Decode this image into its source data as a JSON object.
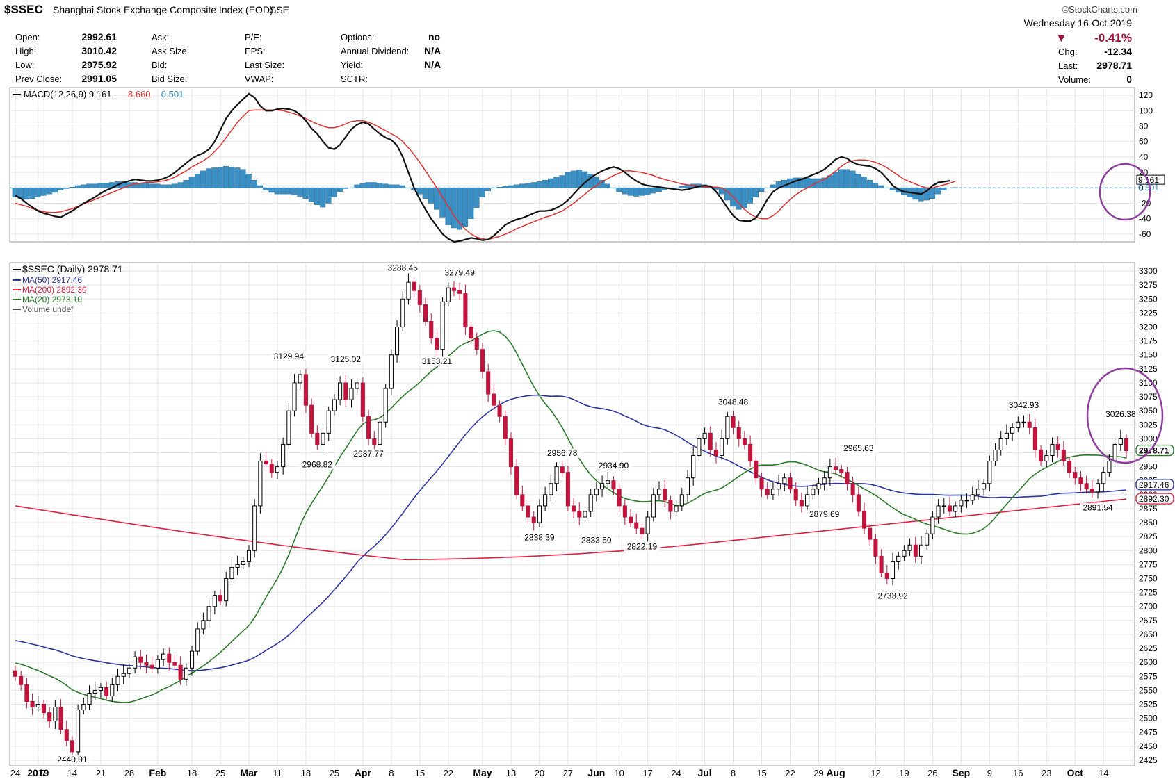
{
  "header": {
    "symbol": "$SSEC",
    "title": "Shanghai Stock Exchange Composite Index (EOD)",
    "exchange": "SSE",
    "watermark": "©StockCharts.com",
    "date": "Wednesday  16-Oct-2019",
    "pct_change": "-0.41%",
    "chg_label": "Chg:",
    "chg_value": "-12.34",
    "last_label": "Last:",
    "last_value": "2978.71",
    "volume_label": "Volume:",
    "volume_value": "0",
    "colors": {
      "down": "#c0143c",
      "up_candle_fill": "#ffffff",
      "purple": "#8e3ca0"
    }
  },
  "quote": {
    "open_label": "Open:",
    "open": "2992.61",
    "high_label": "High:",
    "high": "3010.42",
    "low_label": "Low:",
    "low": "2975.92",
    "prev_label": "Prev Close:",
    "prev": "2991.05",
    "ask_label": "Ask:",
    "ask_size_label": "Ask Size:",
    "bid_label": "Bid:",
    "bid_size_label": "Bid Size:",
    "pe_label": "P/E:",
    "eps_label": "EPS:",
    "last_size_label": "Last Size:",
    "vwap_label": "VWAP:",
    "options_label": "Options:",
    "options": "no",
    "div_label": "Annual Dividend:",
    "div": "N/A",
    "yield_label": "Yield:",
    "yield": "N/A",
    "sctr_label": "SCTR:"
  },
  "chart_data": [
    {
      "type": "line",
      "title": "MACD(12,26,9)",
      "legend": [
        {
          "text": "MACD(12,26,9) 9.161,",
          "color": "#000000"
        },
        {
          "text": "8.660,",
          "color": "#e23030"
        },
        {
          "text": "0.501",
          "color": "#3a8fc4"
        }
      ],
      "ylim": [
        -70,
        130
      ],
      "yticks": [
        120,
        100,
        80,
        60,
        40,
        20,
        0,
        -20,
        -40,
        -60
      ],
      "ytick_labels": [
        "120",
        "100",
        "80",
        "60",
        "40",
        "20",
        "0",
        "-20",
        "-40",
        "-60"
      ],
      "end_labels": {
        "macd": "9.161",
        "histogram": "0.501"
      },
      "histogram": [
        -12,
        -14,
        -15,
        -14,
        -12,
        -10,
        -8,
        -6,
        -3,
        -1,
        1,
        3,
        4,
        5,
        5,
        6,
        6,
        7,
        8,
        8,
        7,
        7,
        6,
        6,
        5,
        5,
        4,
        4,
        5,
        7,
        10,
        14,
        18,
        22,
        25,
        26,
        27,
        28,
        27,
        26,
        24,
        18,
        10,
        3,
        -3,
        -6,
        -8,
        -8,
        -8,
        -9,
        -11,
        -14,
        -18,
        -22,
        -25,
        -20,
        -12,
        -5,
        -1,
        0,
        4,
        6,
        7,
        7,
        6,
        5,
        4,
        4,
        3,
        0,
        -3,
        -8,
        -14,
        -20,
        -28,
        -38,
        -48,
        -52,
        -54,
        -50,
        -40,
        -26,
        -12,
        -4,
        0,
        1,
        2,
        3,
        4,
        5,
        6,
        7,
        8,
        10,
        12,
        14,
        16,
        20,
        22,
        23,
        21,
        18,
        14,
        10,
        5,
        0,
        -5,
        -8,
        -10,
        -11,
        -10,
        -9,
        -7,
        -5,
        -3,
        -1,
        0,
        2,
        4,
        5,
        5,
        4,
        2,
        -2,
        -8,
        -16,
        -24,
        -28,
        -26,
        -20,
        -12,
        -5,
        0,
        4,
        8,
        10,
        12,
        13,
        13,
        13,
        12,
        12,
        13,
        16,
        20,
        24,
        24,
        22,
        18,
        14,
        10,
        6,
        3,
        0,
        -3,
        -6,
        -9,
        -12,
        -15,
        -17,
        -16,
        -14,
        -8,
        -3,
        0,
        0.5
      ],
      "macd": [
        -10,
        -14,
        -20,
        -25,
        -30,
        -33,
        -35,
        -37,
        -38,
        -34,
        -30,
        -25,
        -20,
        -16,
        -12,
        -7,
        -3,
        0,
        4,
        7,
        9,
        11,
        10,
        9,
        9,
        10,
        12,
        15,
        20,
        26,
        32,
        38,
        42,
        45,
        50,
        60,
        75,
        90,
        100,
        108,
        115,
        122,
        117,
        106,
        100,
        100,
        102,
        103,
        102,
        100,
        95,
        87,
        77,
        70,
        60,
        52,
        50,
        56,
        66,
        76,
        82,
        85,
        83,
        76,
        70,
        65,
        62,
        55,
        40,
        20,
        0,
        -15,
        -28,
        -40,
        -50,
        -60,
        -66,
        -70,
        -69,
        -67,
        -65,
        -66,
        -68,
        -67,
        -62,
        -55,
        -48,
        -44,
        -41,
        -39,
        -36,
        -33,
        -30,
        -30,
        -29,
        -26,
        -22,
        -16,
        -8,
        0,
        7,
        13,
        18,
        22,
        25,
        27,
        25,
        20,
        14,
        9,
        5,
        3,
        2,
        1,
        0,
        -1,
        -2,
        -3,
        -2,
        0,
        2,
        3,
        2,
        -5,
        -15,
        -26,
        -36,
        -42,
        -43,
        -43,
        -39,
        -28,
        -15,
        -5,
        0,
        3,
        6,
        9,
        11,
        14,
        17,
        20,
        24,
        30,
        37,
        40,
        38,
        33,
        30,
        29,
        28,
        25,
        20,
        12,
        3,
        -2,
        -5,
        -6,
        -7,
        -8,
        -4,
        3,
        7,
        8,
        9.161
      ],
      "signal": [
        -20,
        -22,
        -24,
        -27,
        -29,
        -31,
        -32,
        -32,
        -31,
        -29,
        -27,
        -24,
        -21,
        -18,
        -15,
        -12,
        -9,
        -6,
        -3,
        0,
        3,
        5,
        6,
        7,
        7,
        8,
        9,
        11,
        14,
        18,
        22,
        27,
        31,
        35,
        40,
        47,
        55,
        65,
        75,
        85,
        93,
        100,
        101,
        101,
        101,
        101,
        101,
        100,
        98,
        96,
        93,
        90,
        86,
        83,
        80,
        78,
        78,
        80,
        83,
        86,
        87,
        87,
        85,
        82,
        78,
        74,
        70,
        66,
        60,
        52,
        43,
        33,
        22,
        11,
        0,
        -12,
        -24,
        -36,
        -46,
        -54,
        -60,
        -64,
        -66,
        -67,
        -65,
        -63,
        -60,
        -57,
        -53,
        -50,
        -47,
        -44,
        -41,
        -38,
        -36,
        -33,
        -30,
        -25,
        -20,
        -14,
        -8,
        -2,
        3,
        8,
        12,
        16,
        19,
        22,
        22,
        21,
        20,
        18,
        16,
        13,
        11,
        9,
        7,
        5,
        4,
        3,
        2,
        1,
        1,
        1,
        0,
        -5,
        -12,
        -20,
        -28,
        -34,
        -38,
        -40,
        -40,
        -36,
        -30,
        -22,
        -15,
        -9,
        -4,
        0,
        4,
        8,
        11,
        16,
        22,
        28,
        33,
        35,
        36,
        36,
        35,
        33,
        30,
        26,
        21,
        16,
        11,
        8,
        5,
        2,
        0,
        0,
        2,
        4,
        6,
        8.66
      ]
    },
    {
      "type": "candlestick",
      "title": "$SSEC (Daily) 2978.71",
      "ylim": [
        2415,
        3315
      ],
      "yticks": [
        3300,
        3275,
        3250,
        3225,
        3200,
        3175,
        3150,
        3125,
        3100,
        3075,
        3050,
        3025,
        3000,
        2975,
        2950,
        2925,
        2900,
        2875,
        2850,
        2825,
        2800,
        2775,
        2750,
        2725,
        2700,
        2675,
        2650,
        2625,
        2600,
        2575,
        2550,
        2525,
        2500,
        2475,
        2450,
        2425
      ],
      "ytick_labels": [
        "3300",
        "3275",
        "3250",
        "3225",
        "3200",
        "3175",
        "3150",
        "3125",
        "3100",
        "3075",
        "3050",
        "3025",
        "3000",
        "2975",
        "2950",
        "2925",
        "2900",
        "2875",
        "2850",
        "2825",
        "2800",
        "2775",
        "2750",
        "2725",
        "2700",
        "2675",
        "2650",
        "2625",
        "2600",
        "2575",
        "2550",
        "2525",
        "2500",
        "2475",
        "2450",
        "2425"
      ],
      "xticks": [
        "24",
        "2019",
        "7",
        "14",
        "21",
        "28",
        "Feb",
        "18",
        "25",
        "Mar",
        "11",
        "18",
        "25",
        "Apr",
        "8",
        "15",
        "22",
        "May",
        "13",
        "20",
        "27",
        "Jun",
        "10",
        "17",
        "24",
        "Jul",
        "8",
        "15",
        "22",
        "29",
        "Aug",
        "12",
        "19",
        "26",
        "Sep",
        "9",
        "16",
        "23",
        "Oct",
        "14"
      ],
      "xtick_days": [
        0,
        4,
        5,
        10,
        15,
        20,
        25,
        31,
        36,
        41,
        46,
        51,
        56,
        61,
        66,
        71,
        76,
        82,
        87,
        92,
        97,
        102,
        106,
        111,
        116,
        121,
        126,
        131,
        136,
        141,
        144,
        151,
        156,
        161,
        166,
        171,
        176,
        181,
        186,
        191
      ],
      "bold_ticks": [
        "2019",
        "Feb",
        "Mar",
        "Apr",
        "May",
        "Jun",
        "Jul",
        "Aug",
        "Sep",
        "Oct"
      ],
      "legend": [
        {
          "text": "$SSEC (Daily) 2978.71",
          "color": "#000000"
        },
        {
          "text": "MA(50) 2917.46",
          "color": "#2b35a0"
        },
        {
          "text": "MA(200) 2892.30",
          "color": "#e02040"
        },
        {
          "text": "MA(20) 2973.10",
          "color": "#2a7a2a"
        },
        {
          "text": "Volume undef",
          "color": "#555555"
        }
      ],
      "end_labels": {
        "last": "2978.71",
        "ma50": "2917.46",
        "ma200": "2892.30"
      },
      "annotations": [
        {
          "i": 10,
          "price": 2440.91,
          "text": "2440.91",
          "pos": "below"
        },
        {
          "i": 48,
          "price": 3129.94,
          "text": "3129.94",
          "pos": "above"
        },
        {
          "i": 53,
          "price": 2968.82,
          "text": "2968.82",
          "pos": "below"
        },
        {
          "i": 58,
          "price": 3125.02,
          "text": "3125.02",
          "pos": "above"
        },
        {
          "i": 62,
          "price": 2987.77,
          "text": "2987.77",
          "pos": "below"
        },
        {
          "i": 68,
          "price": 3288.45,
          "text": "3288.45",
          "pos": "above"
        },
        {
          "i": 74,
          "price": 3153.21,
          "text": "3153.21",
          "pos": "below"
        },
        {
          "i": 78,
          "price": 3279.49,
          "text": "3279.49",
          "pos": "above"
        },
        {
          "i": 92,
          "price": 2838.39,
          "text": "2838.39",
          "pos": "below"
        },
        {
          "i": 96,
          "price": 2956.78,
          "text": "2956.78",
          "pos": "above"
        },
        {
          "i": 102,
          "price": 2833.5,
          "text": "2833.50",
          "pos": "below"
        },
        {
          "i": 105,
          "price": 2934.9,
          "text": "2934.90",
          "pos": "above"
        },
        {
          "i": 110,
          "price": 2822.19,
          "text": "2822.19",
          "pos": "below"
        },
        {
          "i": 126,
          "price": 3048.48,
          "text": "3048.48",
          "pos": "above"
        },
        {
          "i": 142,
          "price": 2879.69,
          "text": "2879.69",
          "pos": "below"
        },
        {
          "i": 148,
          "price": 2965.63,
          "text": "2965.63",
          "pos": "above"
        },
        {
          "i": 154,
          "price": 2733.92,
          "text": "2733.92",
          "pos": "below"
        },
        {
          "i": 177,
          "price": 3042.93,
          "text": "3042.93",
          "pos": "above"
        },
        {
          "i": 190,
          "price": 2891.54,
          "text": "2891.54",
          "pos": "below"
        },
        {
          "i": 194,
          "price": 3026.38,
          "text": "3026.38",
          "pos": "above"
        }
      ],
      "close": [
        2575,
        2560,
        2530,
        2520,
        2525,
        2510,
        2495,
        2520,
        2480,
        2460,
        2440,
        2515,
        2525,
        2545,
        2550,
        2555,
        2540,
        2560,
        2575,
        2580,
        2590,
        2610,
        2600,
        2595,
        2590,
        2605,
        2615,
        2600,
        2595,
        2570,
        2590,
        2620,
        2660,
        2675,
        2700,
        2720,
        2710,
        2750,
        2770,
        2775,
        2780,
        2800,
        2880,
        2960,
        2955,
        2940,
        2950,
        2990,
        3050,
        3100,
        3115,
        3060,
        3010,
        2990,
        3010,
        3050,
        3070,
        3100,
        3070,
        3090,
        3100,
        3040,
        3000,
        2990,
        3030,
        3090,
        3150,
        3200,
        3250,
        3280,
        3265,
        3240,
        3210,
        3180,
        3160,
        3245,
        3270,
        3265,
        3260,
        3200,
        3180,
        3160,
        3120,
        3080,
        3060,
        3040,
        3000,
        2950,
        2900,
        2880,
        2860,
        2850,
        2880,
        2900,
        2920,
        2950,
        2940,
        2880,
        2870,
        2860,
        2870,
        2900,
        2910,
        2920,
        2925,
        2910,
        2880,
        2860,
        2850,
        2840,
        2830,
        2860,
        2900,
        2910,
        2890,
        2870,
        2880,
        2900,
        2930,
        2970,
        3000,
        3010,
        2980,
        2970,
        3000,
        3040,
        3020,
        3000,
        2990,
        2960,
        2930,
        2910,
        2900,
        2910,
        2920,
        2930,
        2910,
        2890,
        2880,
        2900,
        2910,
        2920,
        2930,
        2950,
        2945,
        2940,
        2920,
        2900,
        2870,
        2840,
        2820,
        2790,
        2760,
        2750,
        2780,
        2790,
        2800,
        2810,
        2790,
        2810,
        2830,
        2860,
        2880,
        2880,
        2870,
        2880,
        2890,
        2890,
        2900,
        2910,
        2920,
        2960,
        2980,
        3000,
        3010,
        3020,
        3030,
        3030,
        3020,
        2980,
        2960,
        2970,
        2990,
        2980,
        2960,
        2940,
        2930,
        2920,
        2910,
        2905,
        2920,
        2940,
        2960,
        2990,
        3000,
        2978.71
      ]
    }
  ]
}
